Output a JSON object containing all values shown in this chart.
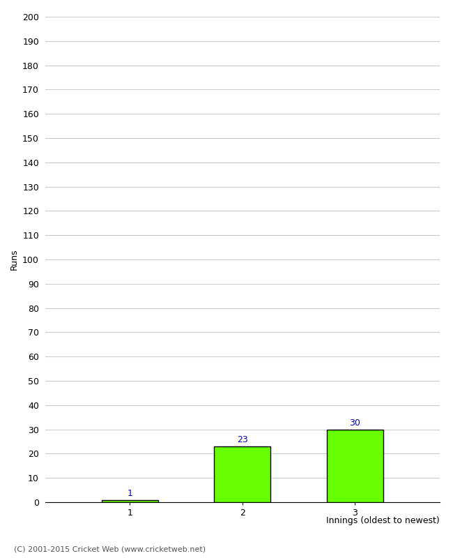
{
  "categories": [
    "1",
    "2",
    "3"
  ],
  "values": [
    1,
    23,
    30
  ],
  "bar_color": "#66ff00",
  "bar_edge_color": "#000000",
  "value_label_color": "#0000cc",
  "ylabel": "Runs",
  "xlabel": "Innings (oldest to newest)",
  "ylim": [
    0,
    200
  ],
  "yticks": [
    0,
    10,
    20,
    30,
    40,
    50,
    60,
    70,
    80,
    90,
    100,
    110,
    120,
    130,
    140,
    150,
    160,
    170,
    180,
    190,
    200
  ],
  "background_color": "#ffffff",
  "grid_color": "#cccccc",
  "footnote": "(C) 2001-2015 Cricket Web (www.cricketweb.net)",
  "footnote_color": "#555555"
}
